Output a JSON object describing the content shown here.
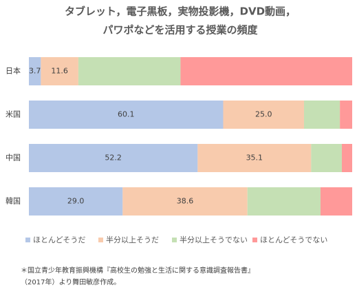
{
  "chart_data": {
    "type": "stacked_barh",
    "title": [
      "タブレット，電子黒板，実物投影機，DVD動画，",
      "パワポなどを活用する授業の頻度"
    ],
    "categories": [
      "日本",
      "米国",
      "中国",
      "韓国"
    ],
    "xlim": [
      0,
      100
    ],
    "series": [
      {
        "name": "ほとんどそうだ",
        "color": "#b4c7e7",
        "values": [
          3.7,
          60.1,
          52.2,
          29.0
        ],
        "value_labels": [
          "3.7",
          "60.1",
          "52.2",
          "29.0"
        ]
      },
      {
        "name": "半分以上そうだ",
        "color": "#f8cbad",
        "values": [
          11.6,
          25.0,
          35.1,
          38.6
        ],
        "value_labels": [
          "11.6",
          "25.0",
          "35.1",
          "38.6"
        ]
      },
      {
        "name": "半分以上そうでない",
        "color": "#c5e0b4",
        "values": [
          31.6,
          11.1,
          9.5,
          22.6
        ]
      },
      {
        "name": "ほとんどそうでない",
        "color": "#ff9999",
        "values": [
          53.1,
          3.8,
          3.2,
          9.8
        ]
      }
    ],
    "legend": "bottom",
    "note": [
      "＊国立青少年教育振興機構『高校生の勉強と生活に関する意識調査報告書』",
      "（2017年）より舞田敏彦作成。"
    ]
  }
}
